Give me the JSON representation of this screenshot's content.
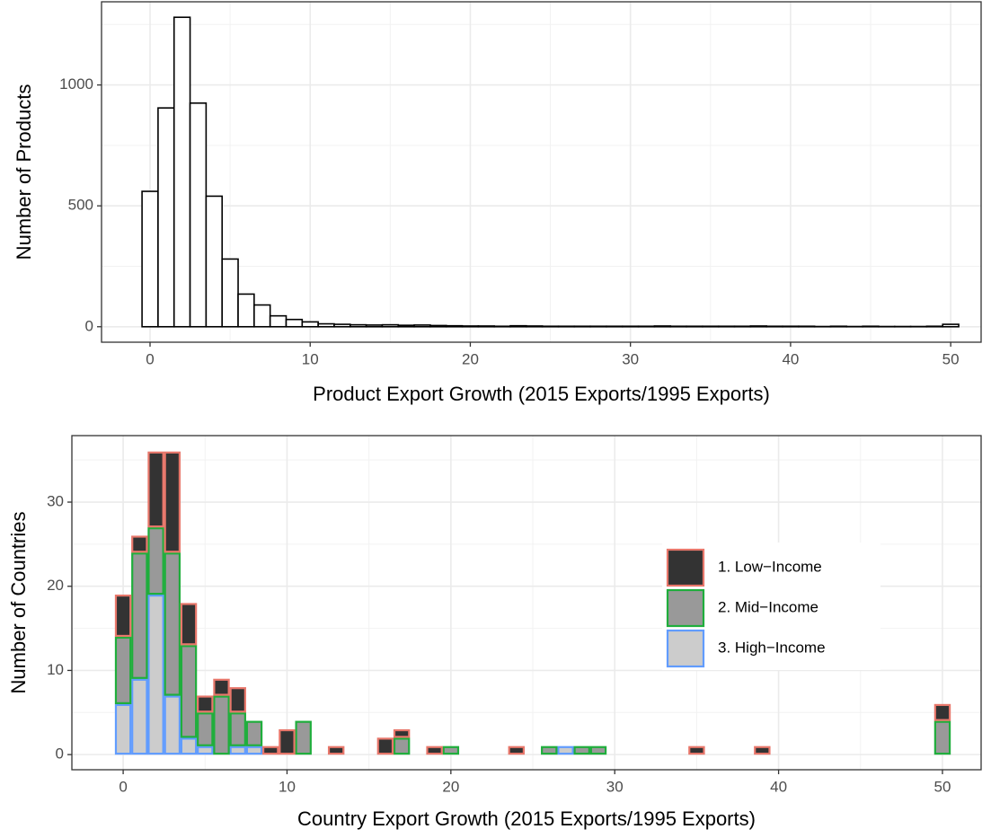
{
  "chart_data": [
    {
      "type": "histogram",
      "xlabel": "Product Export Growth (2015 Exports/1995 Exports)",
      "ylabel": "Number of Products",
      "bins": [
        -0.5,
        0.5,
        1.5,
        2.5,
        3.5,
        4.5,
        5.5,
        6.5,
        7.5,
        8.5,
        9.5,
        10.5,
        11.5,
        12.5,
        13.5,
        14.5,
        15.5,
        16.5,
        17.5,
        18.5,
        19.5,
        20.5,
        21.5,
        22.5,
        23.5,
        24.5,
        25.5,
        26.5,
        27.5,
        28.5,
        29.5,
        30.5,
        31.5,
        32.5,
        33.5,
        34.5,
        35.5,
        36.5,
        37.5,
        38.5,
        39.5,
        40.5,
        41.5,
        42.5,
        43.5,
        44.5,
        45.5,
        46.5,
        47.5,
        48.5,
        49.5,
        50.5
      ],
      "values": [
        560,
        905,
        1280,
        925,
        540,
        280,
        135,
        90,
        45,
        30,
        20,
        12,
        10,
        8,
        7,
        8,
        6,
        7,
        5,
        4,
        3,
        3,
        2,
        4,
        3,
        2,
        2,
        2,
        2,
        2,
        2,
        2,
        3,
        2,
        2,
        2,
        2,
        2,
        3,
        2,
        2,
        2,
        1,
        2,
        1,
        2,
        1,
        1,
        1,
        2,
        10
      ],
      "color": "#ffffff",
      "xlim": [
        -3.03,
        51.9
      ],
      "ylim": [
        -64,
        1344
      ],
      "xticks": [
        0,
        10,
        20,
        30,
        40,
        50
      ],
      "yticks": [
        0,
        500,
        1000
      ],
      "grid": true
    },
    {
      "type": "histogram",
      "xlabel": "Country Export Growth (2015 Exports/1995 Exports)",
      "ylabel": "Number of Countries",
      "bins": [
        -0.5,
        0.5,
        1.5,
        2.5,
        3.5,
        4.5,
        5.5,
        6.5,
        7.5,
        8.5,
        9.5,
        10.5,
        11.5,
        12.5,
        13.5,
        14.5,
        15.5,
        16.5,
        17.5,
        18.5,
        19.5,
        20.5,
        21.5,
        22.5,
        23.5,
        24.5,
        25.5,
        26.5,
        27.5,
        28.5,
        29.5,
        30.5,
        31.5,
        32.5,
        33.5,
        34.5,
        35.5,
        36.5,
        37.5,
        38.5,
        39.5,
        40.5,
        41.5,
        42.5,
        43.5,
        44.5,
        45.5,
        46.5,
        47.5,
        48.5,
        49.5,
        50.5
      ],
      "series": [
        {
          "name": "1. Low−Income",
          "color": "#333333",
          "edge": "#e8776b",
          "values": [
            5,
            2,
            9,
            12,
            5,
            2,
            2,
            3,
            0,
            1,
            3,
            0,
            0,
            1,
            0,
            0,
            2,
            1,
            0,
            1,
            0,
            0,
            0,
            0,
            1,
            0,
            0,
            0,
            0,
            0,
            0,
            0,
            0,
            0,
            0,
            1,
            0,
            0,
            0,
            1,
            0,
            0,
            0,
            0,
            0,
            0,
            0,
            0,
            0,
            0,
            2
          ]
        },
        {
          "name": "2. Mid−Income",
          "color": "#999999",
          "edge": "#1fae3c",
          "values": [
            8,
            15,
            8,
            17,
            11,
            4,
            7,
            4,
            3,
            0,
            0,
            4,
            0,
            0,
            0,
            0,
            0,
            2,
            0,
            0,
            1,
            0,
            0,
            0,
            0,
            0,
            1,
            0,
            1,
            1,
            0,
            0,
            0,
            0,
            0,
            0,
            0,
            0,
            0,
            0,
            0,
            0,
            0,
            0,
            0,
            0,
            0,
            0,
            0,
            0,
            4
          ]
        },
        {
          "name": "3. High−Income",
          "color": "#cccccc",
          "edge": "#619cff",
          "values": [
            6,
            9,
            19,
            7,
            2,
            1,
            0,
            1,
            1,
            0,
            0,
            0,
            0,
            0,
            0,
            0,
            0,
            0,
            0,
            0,
            0,
            0,
            0,
            0,
            0,
            0,
            0,
            1,
            0,
            0,
            0,
            0,
            0,
            0,
            0,
            0,
            0,
            0,
            0,
            0,
            0,
            0,
            0,
            0,
            0,
            0,
            0,
            0,
            0,
            0,
            0
          ]
        }
      ],
      "stacked": true,
      "xlim": [
        -3.13,
        52.36
      ],
      "ylim": [
        -1.8,
        37.9
      ],
      "xticks": [
        0,
        10,
        20,
        30,
        40,
        50
      ],
      "yticks": [
        0,
        10,
        20,
        30
      ],
      "grid": true,
      "legend": "right"
    }
  ]
}
